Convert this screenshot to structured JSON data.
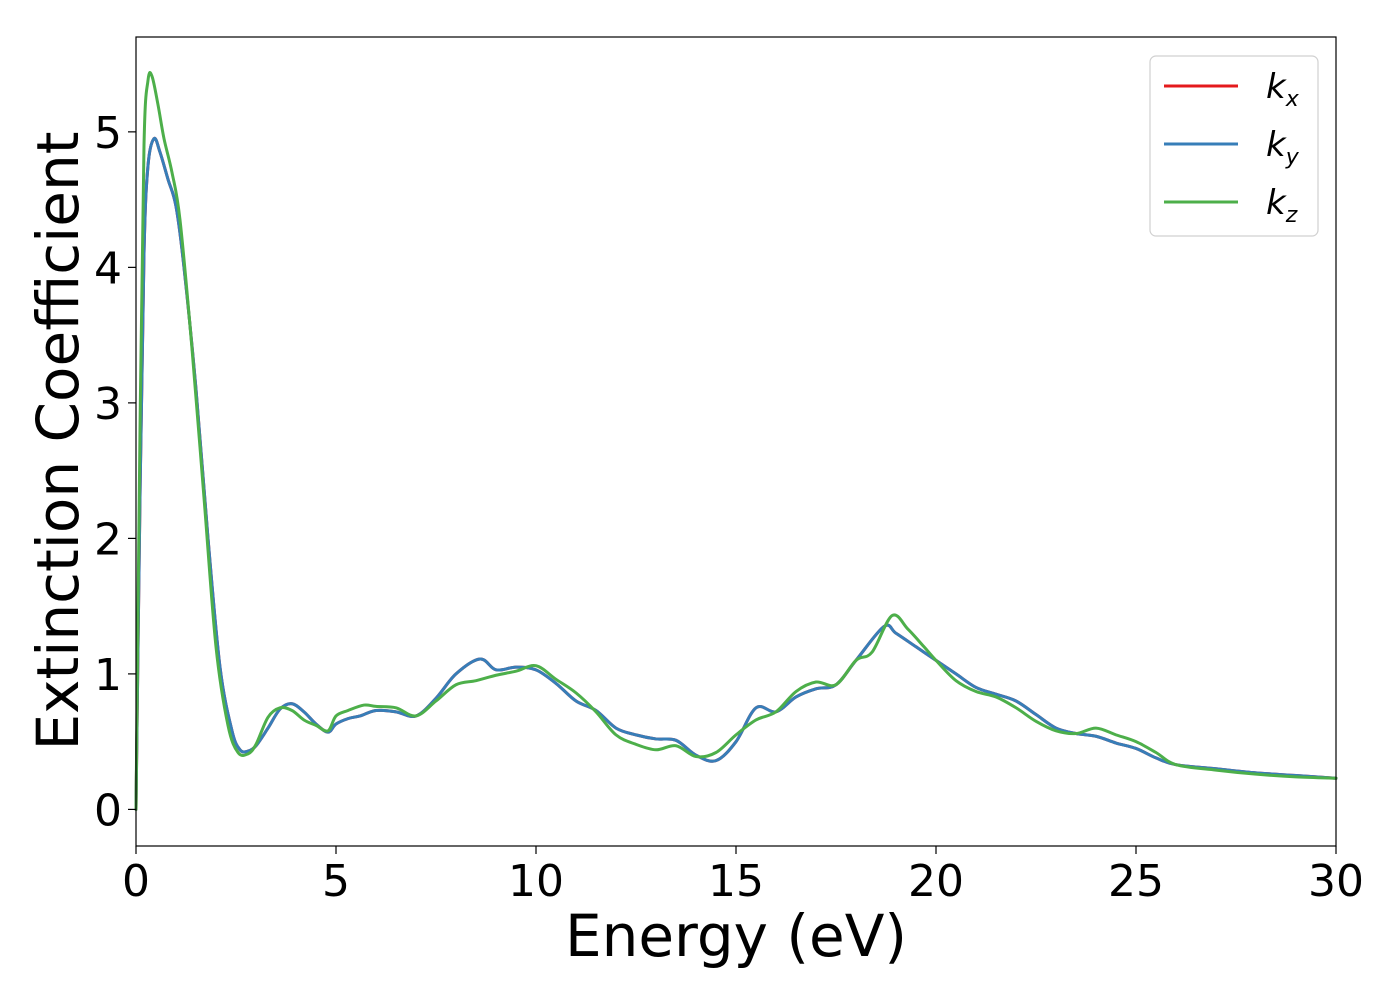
{
  "chart_data": {
    "type": "line",
    "title": "",
    "xlabel": "Energy (eV)",
    "ylabel": "Extinction Coefficient",
    "xlim": [
      0,
      30
    ],
    "ylim": [
      -0.27,
      5.7
    ],
    "xticks": [
      0,
      5,
      10,
      15,
      20,
      25,
      30
    ],
    "yticks": [
      0,
      1,
      2,
      3,
      4,
      5
    ],
    "grid": false,
    "legend_position": "top-right",
    "series": [
      {
        "name": "k",
        "sub": "x",
        "color": "#e41a1c",
        "x": [
          0,
          0.1,
          0.2,
          0.3,
          0.45,
          0.6,
          0.8,
          1.0,
          1.2,
          1.5,
          1.8,
          2.1,
          2.4,
          2.6,
          2.8,
          3.0,
          3.3,
          3.6,
          3.9,
          4.2,
          4.5,
          4.8,
          5.0,
          5.3,
          5.6,
          6.0,
          6.5,
          7.0,
          7.5,
          8.0,
          8.6,
          9.0,
          9.5,
          10.0,
          10.5,
          11.0,
          11.5,
          12.0,
          12.5,
          13.0,
          13.5,
          14.0,
          14.5,
          15.0,
          15.5,
          16.0,
          16.5,
          17.0,
          17.5,
          18.0,
          18.7,
          19.0,
          19.5,
          20.0,
          20.5,
          21.0,
          21.5,
          22.0,
          22.5,
          23.0,
          23.5,
          24.0,
          24.5,
          25.0,
          25.5,
          26.0,
          27.0,
          28.0,
          29.0,
          30.0
        ],
        "y": [
          0.0,
          2.3,
          4.1,
          4.75,
          4.95,
          4.85,
          4.65,
          4.45,
          4.0,
          3.1,
          2.0,
          1.05,
          0.58,
          0.44,
          0.43,
          0.47,
          0.6,
          0.74,
          0.78,
          0.72,
          0.63,
          0.57,
          0.63,
          0.67,
          0.69,
          0.73,
          0.72,
          0.69,
          0.82,
          1.0,
          1.11,
          1.03,
          1.05,
          1.03,
          0.93,
          0.8,
          0.73,
          0.6,
          0.55,
          0.52,
          0.51,
          0.4,
          0.36,
          0.5,
          0.75,
          0.72,
          0.83,
          0.89,
          0.92,
          1.1,
          1.35,
          1.3,
          1.2,
          1.1,
          1.0,
          0.9,
          0.85,
          0.8,
          0.7,
          0.6,
          0.56,
          0.54,
          0.49,
          0.45,
          0.38,
          0.33,
          0.3,
          0.27,
          0.25,
          0.23
        ]
      },
      {
        "name": "k",
        "sub": "y",
        "color": "#377eb8",
        "x": [
          0,
          0.1,
          0.2,
          0.3,
          0.45,
          0.6,
          0.8,
          1.0,
          1.2,
          1.5,
          1.8,
          2.1,
          2.4,
          2.6,
          2.8,
          3.0,
          3.3,
          3.6,
          3.9,
          4.2,
          4.5,
          4.8,
          5.0,
          5.3,
          5.6,
          6.0,
          6.5,
          7.0,
          7.5,
          8.0,
          8.6,
          9.0,
          9.5,
          10.0,
          10.5,
          11.0,
          11.5,
          12.0,
          12.5,
          13.0,
          13.5,
          14.0,
          14.5,
          15.0,
          15.5,
          16.0,
          16.5,
          17.0,
          17.5,
          18.0,
          18.7,
          19.0,
          19.5,
          20.0,
          20.5,
          21.0,
          21.5,
          22.0,
          22.5,
          23.0,
          23.5,
          24.0,
          24.5,
          25.0,
          25.5,
          26.0,
          27.0,
          28.0,
          29.0,
          30.0
        ],
        "y": [
          0.0,
          2.3,
          4.1,
          4.75,
          4.95,
          4.85,
          4.65,
          4.45,
          4.0,
          3.1,
          2.0,
          1.05,
          0.58,
          0.44,
          0.43,
          0.47,
          0.6,
          0.74,
          0.78,
          0.72,
          0.63,
          0.57,
          0.63,
          0.67,
          0.69,
          0.73,
          0.72,
          0.69,
          0.82,
          1.0,
          1.11,
          1.03,
          1.05,
          1.03,
          0.93,
          0.8,
          0.73,
          0.6,
          0.55,
          0.52,
          0.51,
          0.4,
          0.36,
          0.5,
          0.75,
          0.72,
          0.83,
          0.89,
          0.92,
          1.1,
          1.35,
          1.3,
          1.2,
          1.1,
          1.0,
          0.9,
          0.85,
          0.8,
          0.7,
          0.6,
          0.56,
          0.54,
          0.49,
          0.45,
          0.38,
          0.33,
          0.3,
          0.27,
          0.25,
          0.23
        ]
      },
      {
        "name": "k",
        "sub": "z",
        "color": "#4daf4a",
        "x": [
          0,
          0.1,
          0.2,
          0.3,
          0.4,
          0.55,
          0.7,
          0.9,
          1.1,
          1.4,
          1.7,
          2.0,
          2.3,
          2.55,
          2.8,
          3.0,
          3.3,
          3.6,
          3.9,
          4.2,
          4.5,
          4.8,
          5.0,
          5.3,
          5.7,
          6.0,
          6.5,
          7.0,
          7.5,
          8.0,
          8.5,
          9.0,
          9.5,
          10.0,
          10.5,
          11.0,
          11.5,
          12.0,
          12.5,
          13.0,
          13.5,
          14.0,
          14.5,
          15.0,
          15.5,
          16.0,
          16.5,
          17.0,
          17.5,
          18.0,
          18.4,
          18.9,
          19.3,
          19.7,
          20.0,
          20.5,
          21.0,
          21.5,
          22.0,
          22.5,
          23.0,
          23.5,
          24.0,
          24.5,
          25.0,
          25.5,
          26.0,
          27.0,
          28.0,
          29.0,
          30.0
        ],
        "y": [
          0.0,
          2.8,
          4.9,
          5.38,
          5.41,
          5.2,
          4.95,
          4.7,
          4.35,
          3.4,
          2.3,
          1.2,
          0.62,
          0.42,
          0.41,
          0.48,
          0.68,
          0.75,
          0.73,
          0.66,
          0.62,
          0.58,
          0.69,
          0.73,
          0.77,
          0.76,
          0.75,
          0.69,
          0.8,
          0.92,
          0.95,
          0.99,
          1.02,
          1.06,
          0.96,
          0.86,
          0.72,
          0.55,
          0.48,
          0.44,
          0.47,
          0.39,
          0.42,
          0.55,
          0.66,
          0.72,
          0.87,
          0.94,
          0.92,
          1.1,
          1.16,
          1.43,
          1.33,
          1.2,
          1.1,
          0.95,
          0.87,
          0.83,
          0.75,
          0.65,
          0.58,
          0.56,
          0.6,
          0.55,
          0.5,
          0.42,
          0.33,
          0.29,
          0.26,
          0.24,
          0.23
        ]
      }
    ]
  }
}
